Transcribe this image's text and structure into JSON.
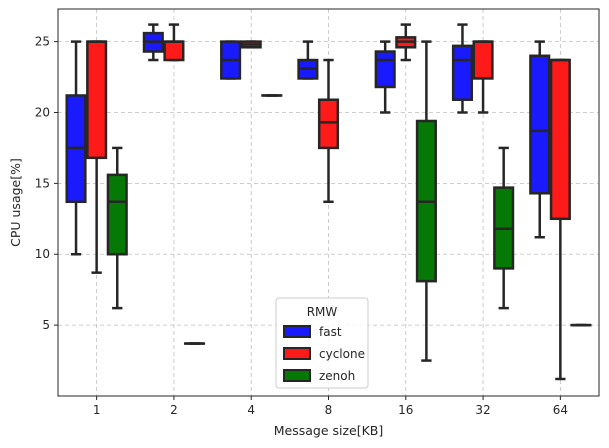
{
  "chart_data": {
    "type": "boxplot",
    "title": "",
    "xlabel": "Message size[KB]",
    "ylabel": "CPU usage[%]",
    "categories": [
      "1",
      "2",
      "4",
      "8",
      "16",
      "32",
      "64"
    ],
    "ylim": [
      0,
      27.3
    ],
    "yticks": [
      5,
      10,
      15,
      20,
      25
    ],
    "grid": true,
    "legend": {
      "title": "RMW",
      "placement": "bottom-center"
    },
    "series": [
      {
        "name": "fast",
        "color": "#1a1aff",
        "boxes": [
          {
            "whislo": 10.0,
            "q1": 13.7,
            "med": 17.5,
            "q3": 21.2,
            "whishi": 25.0
          },
          {
            "whislo": 23.7,
            "q1": 24.3,
            "med": 25.0,
            "q3": 25.6,
            "whishi": 26.2
          },
          {
            "whislo": 22.4,
            "q1": 22.4,
            "med": 23.7,
            "q3": 25.0,
            "whishi": 25.0
          },
          {
            "whislo": 22.4,
            "q1": 22.4,
            "med": 23.1,
            "q3": 23.7,
            "whishi": 25.0
          },
          {
            "whislo": 20.0,
            "q1": 21.8,
            "med": 23.7,
            "q3": 24.3,
            "whishi": 25.0
          },
          {
            "whislo": 20.0,
            "q1": 20.9,
            "med": 23.7,
            "q3": 24.7,
            "whishi": 26.2
          },
          {
            "whislo": 11.2,
            "q1": 14.3,
            "med": 18.7,
            "q3": 24.0,
            "whishi": 25.0
          }
        ]
      },
      {
        "name": "cyclone",
        "color": "#ff1a1a",
        "boxes": [
          {
            "whislo": 8.7,
            "q1": 16.8,
            "med": 25.0,
            "q3": 25.0,
            "whishi": 25.0
          },
          {
            "whislo": 23.7,
            "q1": 23.7,
            "med": 25.0,
            "q3": 25.0,
            "whishi": 26.2
          },
          {
            "whislo": 24.6,
            "q1": 24.6,
            "med": 24.8,
            "q3": 25.0,
            "whishi": 25.0
          },
          {
            "whislo": 13.7,
            "q1": 17.5,
            "med": 19.3,
            "q3": 20.9,
            "whishi": 23.7
          },
          {
            "whislo": 23.7,
            "q1": 24.6,
            "med": 25.0,
            "q3": 25.3,
            "whishi": 26.2
          },
          {
            "whislo": 20.0,
            "q1": 22.4,
            "med": 25.0,
            "q3": 25.0,
            "whishi": 25.0
          },
          {
            "whislo": 1.2,
            "q1": 12.5,
            "med": 23.7,
            "q3": 23.7,
            "whishi": 23.7
          }
        ]
      },
      {
        "name": "zenoh",
        "color": "#067806",
        "boxes": [
          {
            "whislo": 6.2,
            "q1": 10.0,
            "med": 13.7,
            "q3": 15.6,
            "whishi": 17.5
          },
          {
            "whislo": 3.7,
            "q1": 3.7,
            "med": 3.7,
            "q3": 3.7,
            "whishi": 3.7
          },
          {
            "whislo": 21.2,
            "q1": 21.2,
            "med": 21.2,
            "q3": 21.2,
            "whishi": 21.2
          },
          null,
          {
            "whislo": 2.5,
            "q1": 8.1,
            "med": 13.7,
            "q3": 19.4,
            "whishi": 25.0
          },
          {
            "whislo": 6.2,
            "q1": 9.0,
            "med": 11.8,
            "q3": 14.7,
            "whishi": 17.5
          },
          {
            "whislo": 5.0,
            "q1": 5.0,
            "med": 5.0,
            "q3": 5.0,
            "whishi": 5.0
          }
        ]
      }
    ]
  }
}
